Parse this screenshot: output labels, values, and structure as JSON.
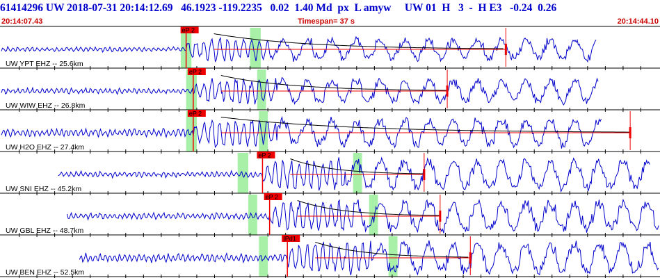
{
  "header": {
    "event_line": "61414296 UW 2018-07-31 20:14:12.69   46.1923 -119.2235   0.02  1.40 Md  px  L amyw     UW 01  H   3  -  H E3   -0.24  0.26",
    "start_time": "20:14:07.43",
    "timespan": "Timespan=  37 s",
    "end_time": "20:14:44.10"
  },
  "colors": {
    "trace": "#0000cc",
    "pick": "#ee0000",
    "window": "#a8f0a8",
    "decay": "#000000",
    "grid": "#000000"
  },
  "chart_data": {
    "type": "line",
    "title": "",
    "time_range_s": [
      0,
      37
    ],
    "grid": true,
    "stations": [
      {
        "label": "UW YPT EHZ -- 25.6km",
        "pick_label": "eP 2",
        "trace_start_s": 0.0,
        "pick_s": 10.4,
        "windows_s": [
          [
            10.1,
            10.7
          ],
          [
            14.0,
            14.6
          ]
        ],
        "coda_end_s": 28.4,
        "trace_end_s": 33.5,
        "noise_amp": 0.08,
        "signal_amp": 0.55
      },
      {
        "label": "UW WIW EHZ -- 26.8km",
        "pick_label": "eP 2",
        "trace_start_s": 0.0,
        "pick_s": 10.8,
        "windows_s": [
          [
            10.4,
            11.0
          ],
          [
            14.4,
            14.9
          ]
        ],
        "coda_end_s": 25.1,
        "trace_end_s": 33.6,
        "noise_amp": 0.1,
        "signal_amp": 0.6
      },
      {
        "label": "UW H2O EHZ -- 27.4km",
        "pick_label": "eP 2",
        "trace_start_s": 0.0,
        "pick_s": 10.8,
        "windows_s": [
          [
            10.4,
            11.0
          ],
          [
            14.5,
            15.0
          ]
        ],
        "coda_end_s": 35.4,
        "trace_end_s": 33.8,
        "noise_amp": 0.15,
        "signal_amp": 0.7
      },
      {
        "label": "UW SNI EHZ -- 45.2km",
        "pick_label": "eP 2",
        "trace_start_s": 3.2,
        "pick_s": 14.7,
        "windows_s": [
          [
            13.3,
            13.9
          ],
          [
            19.8,
            20.3
          ]
        ],
        "coda_end_s": 23.8,
        "trace_end_s": 36.5,
        "noise_amp": 0.1,
        "signal_amp": 0.75
      },
      {
        "label": "UW GBL EHZ -- 48.7km",
        "pick_label": "eP 2",
        "trace_start_s": 3.7,
        "pick_s": 15.1,
        "windows_s": [
          [
            13.9,
            14.4
          ],
          [
            20.7,
            21.2
          ]
        ],
        "coda_end_s": 24.7,
        "trace_end_s": 37.0,
        "noise_amp": 0.12,
        "signal_amp": 0.75
      },
      {
        "label": "UW BEN EHZ -- 52.5km",
        "pick_label": "IPd1",
        "trace_start_s": 4.4,
        "pick_s": 16.1,
        "windows_s": [
          [
            14.5,
            15.0
          ],
          [
            21.8,
            22.3
          ]
        ],
        "coda_end_s": 26.4,
        "trace_end_s": 37.0,
        "noise_amp": 0.15,
        "signal_amp": 0.8
      }
    ]
  }
}
